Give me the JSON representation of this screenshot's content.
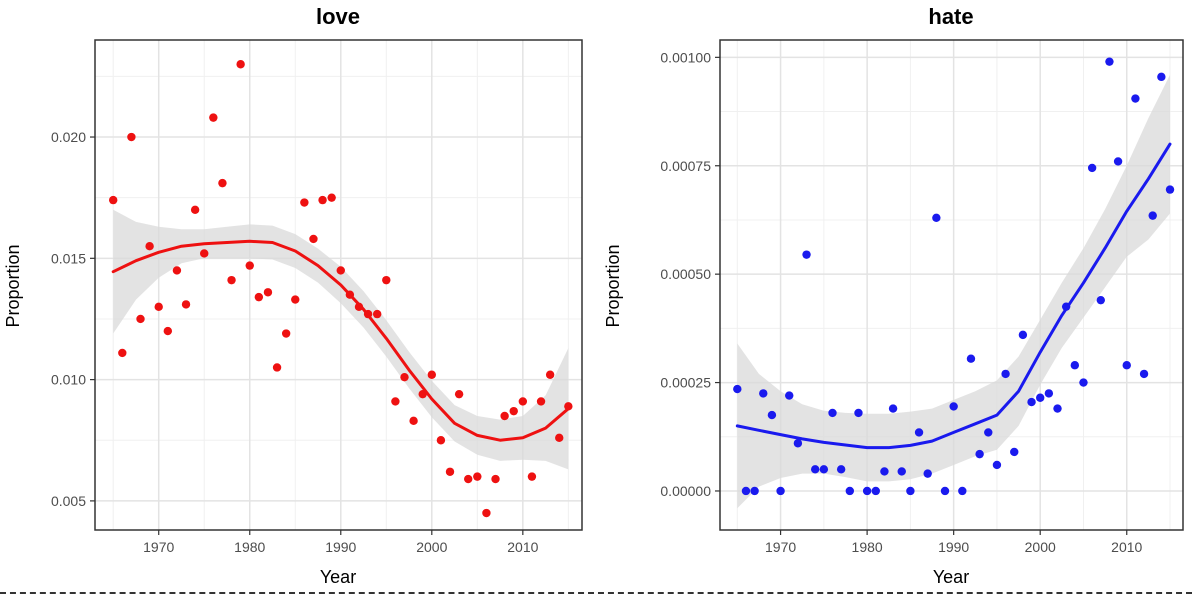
{
  "chart_data": [
    {
      "type": "scatter",
      "title": "love",
      "xlabel": "Year",
      "ylabel": "Proportion",
      "xlim": [
        1963,
        2016.5
      ],
      "ylim": [
        0.0038,
        0.024
      ],
      "x_ticks": [
        1970,
        1980,
        1990,
        2000,
        2010
      ],
      "x_tick_labels": [
        "1970",
        "1980",
        "1990",
        "2000",
        "2010"
      ],
      "y_ticks": [
        0.005,
        0.01,
        0.015,
        0.02
      ],
      "y_tick_labels": [
        "0.005",
        "0.010",
        "0.015",
        "0.020"
      ],
      "grid": true,
      "color": "#ee1111",
      "band_color": "#d9d9d9",
      "points": [
        [
          1965,
          0.0174
        ],
        [
          1966,
          0.0111
        ],
        [
          1967,
          0.02
        ],
        [
          1968,
          0.0125
        ],
        [
          1969,
          0.0155
        ],
        [
          1970,
          0.013
        ],
        [
          1971,
          0.012
        ],
        [
          1972,
          0.0145
        ],
        [
          1973,
          0.0131
        ],
        [
          1974,
          0.017
        ],
        [
          1975,
          0.0152
        ],
        [
          1976,
          0.0208
        ],
        [
          1977,
          0.0181
        ],
        [
          1978,
          0.0141
        ],
        [
          1979,
          0.023
        ],
        [
          1980,
          0.0147
        ],
        [
          1981,
          0.0134
        ],
        [
          1982,
          0.0136
        ],
        [
          1983,
          0.0105
        ],
        [
          1984,
          0.0119
        ],
        [
          1985,
          0.0133
        ],
        [
          1986,
          0.0173
        ],
        [
          1987,
          0.0158
        ],
        [
          1988,
          0.0174
        ],
        [
          1989,
          0.0175
        ],
        [
          1990,
          0.0145
        ],
        [
          1991,
          0.0135
        ],
        [
          1992,
          0.013
        ],
        [
          1993,
          0.0127
        ],
        [
          1994,
          0.0127
        ],
        [
          1995,
          0.0141
        ],
        [
          1996,
          0.0091
        ],
        [
          1997,
          0.0101
        ],
        [
          1998,
          0.0083
        ],
        [
          1999,
          0.0094
        ],
        [
          2000,
          0.0102
        ],
        [
          2001,
          0.0075
        ],
        [
          2002,
          0.0062
        ],
        [
          2003,
          0.0094
        ],
        [
          2004,
          0.0059
        ],
        [
          2005,
          0.006
        ],
        [
          2006,
          0.0045
        ],
        [
          2007,
          0.0059
        ],
        [
          2008,
          0.0085
        ],
        [
          2009,
          0.0087
        ],
        [
          2010,
          0.0091
        ],
        [
          2011,
          0.006
        ],
        [
          2012,
          0.0091
        ],
        [
          2013,
          0.0102
        ],
        [
          2014,
          0.0076
        ],
        [
          2015,
          0.0089
        ]
      ],
      "smooth_line": [
        [
          1965,
          0.01445
        ],
        [
          1967.5,
          0.0149
        ],
        [
          1970,
          0.01525
        ],
        [
          1972.5,
          0.0155
        ],
        [
          1975,
          0.0156
        ],
        [
          1977.5,
          0.01565
        ],
        [
          1980,
          0.0157
        ],
        [
          1982.5,
          0.01565
        ],
        [
          1985,
          0.0153
        ],
        [
          1987.5,
          0.0147
        ],
        [
          1990,
          0.0139
        ],
        [
          1992.5,
          0.0129
        ],
        [
          1995,
          0.0117
        ],
        [
          1997.5,
          0.0104
        ],
        [
          2000,
          0.0092
        ],
        [
          2002.5,
          0.0082
        ],
        [
          2005,
          0.0077
        ],
        [
          2007.5,
          0.0075
        ],
        [
          2010,
          0.0076
        ],
        [
          2012.5,
          0.008
        ],
        [
          2015,
          0.0088
        ]
      ],
      "band_upper": [
        [
          1965,
          0.017
        ],
        [
          1967.5,
          0.0165
        ],
        [
          1970,
          0.0163
        ],
        [
          1972.5,
          0.0162
        ],
        [
          1975,
          0.0162
        ],
        [
          1977.5,
          0.0163
        ],
        [
          1980,
          0.0164
        ],
        [
          1982.5,
          0.01635
        ],
        [
          1985,
          0.016
        ],
        [
          1987.5,
          0.0154
        ],
        [
          1990,
          0.01465
        ],
        [
          1992.5,
          0.01365
        ],
        [
          1995,
          0.01245
        ],
        [
          1997.5,
          0.01115
        ],
        [
          2000,
          0.00995
        ],
        [
          2002.5,
          0.00895
        ],
        [
          2005,
          0.0085
        ],
        [
          2007.5,
          0.00835
        ],
        [
          2010,
          0.0085
        ],
        [
          2012.5,
          0.00935
        ],
        [
          2015,
          0.0113
        ]
      ],
      "band_lower": [
        [
          1965,
          0.0119
        ],
        [
          1967.5,
          0.0133
        ],
        [
          1970,
          0.0142
        ],
        [
          1972.5,
          0.0148
        ],
        [
          1975,
          0.015
        ],
        [
          1977.5,
          0.015
        ],
        [
          1980,
          0.015
        ],
        [
          1982.5,
          0.01495
        ],
        [
          1985,
          0.0146
        ],
        [
          1987.5,
          0.014
        ],
        [
          1990,
          0.01315
        ],
        [
          1992.5,
          0.01215
        ],
        [
          1995,
          0.01095
        ],
        [
          1997.5,
          0.00965
        ],
        [
          2000,
          0.00845
        ],
        [
          2002.5,
          0.00745
        ],
        [
          2005,
          0.0069
        ],
        [
          2007.5,
          0.00665
        ],
        [
          2010,
          0.0067
        ],
        [
          2012.5,
          0.00665
        ],
        [
          2015,
          0.0063
        ]
      ]
    },
    {
      "type": "scatter",
      "title": "hate",
      "xlabel": "Year",
      "ylabel": "Proportion",
      "xlim": [
        1963,
        2016.5
      ],
      "ylim": [
        -9e-05,
        0.00104
      ],
      "x_ticks": [
        1970,
        1980,
        1990,
        2000,
        2010
      ],
      "x_tick_labels": [
        "1970",
        "1980",
        "1990",
        "2000",
        "2010"
      ],
      "y_ticks": [
        0,
        0.00025,
        0.0005,
        0.00075,
        0.001
      ],
      "y_tick_labels": [
        "0.00000",
        "0.00025",
        "0.00050",
        "0.00075",
        "0.00100"
      ],
      "grid": true,
      "color": "#1a1aee",
      "band_color": "#d9d9d9",
      "points": [
        [
          1965,
          0.000235
        ],
        [
          1966,
          0.0
        ],
        [
          1967,
          0.0
        ],
        [
          1968,
          0.000225
        ],
        [
          1969,
          0.000175
        ],
        [
          1970,
          0.0
        ],
        [
          1971,
          0.00022
        ],
        [
          1972,
          0.00011
        ],
        [
          1973,
          0.000545
        ],
        [
          1974,
          5e-05
        ],
        [
          1975,
          5e-05
        ],
        [
          1976,
          0.00018
        ],
        [
          1977,
          5e-05
        ],
        [
          1978,
          0.0
        ],
        [
          1979,
          0.00018
        ],
        [
          1980,
          0.0
        ],
        [
          1981,
          0.0
        ],
        [
          1982,
          4.5e-05
        ],
        [
          1983,
          0.00019
        ],
        [
          1984,
          4.5e-05
        ],
        [
          1985,
          0.0
        ],
        [
          1986,
          0.000135
        ],
        [
          1987,
          4e-05
        ],
        [
          1988,
          0.00063
        ],
        [
          1989,
          0.0
        ],
        [
          1990,
          0.000195
        ],
        [
          1991,
          0.0
        ],
        [
          1992,
          0.000305
        ],
        [
          1993,
          8.5e-05
        ],
        [
          1994,
          0.000135
        ],
        [
          1995,
          6e-05
        ],
        [
          1996,
          0.00027
        ],
        [
          1997,
          9e-05
        ],
        [
          1998,
          0.00036
        ],
        [
          1999,
          0.000205
        ],
        [
          2000,
          0.000215
        ],
        [
          2001,
          0.000225
        ],
        [
          2002,
          0.00019
        ],
        [
          2003,
          0.000425
        ],
        [
          2004,
          0.00029
        ],
        [
          2005,
          0.00025
        ],
        [
          2006,
          0.000745
        ],
        [
          2007,
          0.00044
        ],
        [
          2008,
          0.00099
        ],
        [
          2009,
          0.00076
        ],
        [
          2010,
          0.00029
        ],
        [
          2011,
          0.000905
        ],
        [
          2012,
          0.00027
        ],
        [
          2013,
          0.000635
        ],
        [
          2014,
          0.000955
        ],
        [
          2015,
          0.000695
        ]
      ],
      "smooth_line": [
        [
          1965,
          0.00015
        ],
        [
          1967.5,
          0.00014
        ],
        [
          1970,
          0.00013
        ],
        [
          1972.5,
          0.00012
        ],
        [
          1975,
          0.000112
        ],
        [
          1977.5,
          0.000106
        ],
        [
          1980,
          0.0001
        ],
        [
          1982.5,
          0.0001
        ],
        [
          1985,
          0.000105
        ],
        [
          1987.5,
          0.000115
        ],
        [
          1990,
          0.000135
        ],
        [
          1992.5,
          0.000155
        ],
        [
          1995,
          0.000175
        ],
        [
          1997.5,
          0.00023
        ],
        [
          2000,
          0.00032
        ],
        [
          2002.5,
          0.000405
        ],
        [
          2005,
          0.00048
        ],
        [
          2007.5,
          0.00056
        ],
        [
          2010,
          0.000645
        ],
        [
          2012.5,
          0.00072
        ],
        [
          2015,
          0.0008
        ]
      ],
      "band_upper": [
        [
          1965,
          0.00034
        ],
        [
          1967.5,
          0.00027
        ],
        [
          1970,
          0.00023
        ],
        [
          1972.5,
          0.0002
        ],
        [
          1975,
          0.000185
        ],
        [
          1977.5,
          0.00018
        ],
        [
          1980,
          0.000178
        ],
        [
          1982.5,
          0.000178
        ],
        [
          1985,
          0.000183
        ],
        [
          1987.5,
          0.00019
        ],
        [
          1990,
          0.00021
        ],
        [
          1992.5,
          0.00023
        ],
        [
          1995,
          0.000255
        ],
        [
          1997.5,
          0.00031
        ],
        [
          2000,
          0.000395
        ],
        [
          2002.5,
          0.00048
        ],
        [
          2005,
          0.00056
        ],
        [
          2007.5,
          0.00065
        ],
        [
          2010,
          0.00075
        ],
        [
          2012.5,
          0.00086
        ],
        [
          2015,
          0.00096
        ]
      ],
      "band_lower": [
        [
          1965,
          -4e-05
        ],
        [
          1967.5,
          1e-05
        ],
        [
          1970,
          3e-05
        ],
        [
          1972.5,
          4e-05
        ],
        [
          1975,
          4e-05
        ],
        [
          1977.5,
          3.2e-05
        ],
        [
          1980,
          2.2e-05
        ],
        [
          1982.5,
          2.2e-05
        ],
        [
          1985,
          2.7e-05
        ],
        [
          1987.5,
          4e-05
        ],
        [
          1990,
          6e-05
        ],
        [
          1992.5,
          8e-05
        ],
        [
          1995,
          9.5e-05
        ],
        [
          1997.5,
          0.00015
        ],
        [
          2000,
          0.000245
        ],
        [
          2002.5,
          0.00033
        ],
        [
          2005,
          0.0004
        ],
        [
          2007.5,
          0.00047
        ],
        [
          2010,
          0.00054
        ],
        [
          2012.5,
          0.00058
        ],
        [
          2015,
          0.00064
        ]
      ]
    }
  ]
}
